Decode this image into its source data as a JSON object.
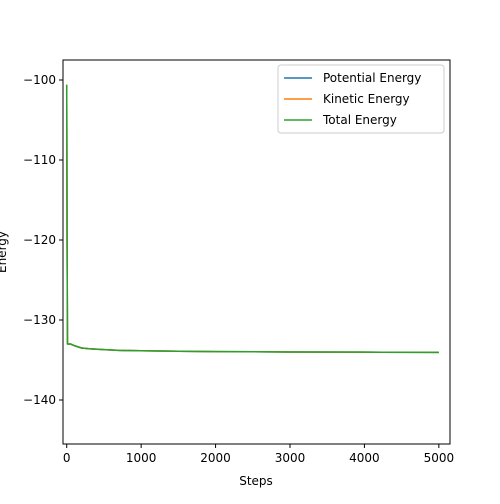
{
  "chart_data": {
    "type": "line",
    "xlabel": "Steps",
    "ylabel": "Energy",
    "xlim": [
      -50,
      5150
    ],
    "ylim": [
      -145.5,
      -97.5
    ],
    "xticks": [
      0,
      1000,
      2000,
      3000,
      4000,
      5000
    ],
    "yticks": [
      -100,
      -110,
      -120,
      -130,
      -140
    ],
    "xtick_labels": [
      "0",
      "1000",
      "2000",
      "3000",
      "4000",
      "5000"
    ],
    "ytick_labels": [
      "−100",
      "−110",
      "−120",
      "−130",
      "−140"
    ],
    "grid": false,
    "legend_position": "top-right",
    "series": [
      {
        "name": "Potential Energy",
        "color": "#1f77b4",
        "x": [
          0,
          5,
          10,
          20,
          30,
          50,
          100,
          200,
          300,
          500,
          700,
          1000,
          1500,
          2000,
          2500,
          3000,
          4000,
          5000
        ],
        "y": [
          -100.6,
          -120.0,
          -133.0,
          -133.0,
          -133.0,
          -133.0,
          -133.2,
          -133.5,
          -133.6,
          -133.7,
          -133.8,
          -133.85,
          -133.9,
          -133.95,
          -133.97,
          -134.0,
          -134.02,
          -134.05
        ]
      },
      {
        "name": "Kinetic Energy",
        "color": "#ff7f0e",
        "x": [
          0,
          5,
          10,
          20,
          30,
          50,
          100,
          200,
          300,
          500,
          700,
          1000,
          1500,
          2000,
          2500,
          3000,
          4000,
          5000
        ],
        "y": [
          -100.6,
          -120.0,
          -133.0,
          -133.0,
          -133.0,
          -133.0,
          -133.2,
          -133.5,
          -133.6,
          -133.7,
          -133.8,
          -133.85,
          -133.9,
          -133.95,
          -133.97,
          -134.0,
          -134.02,
          -134.05
        ]
      },
      {
        "name": "Total Energy",
        "color": "#2ca02c",
        "x": [
          0,
          5,
          10,
          20,
          30,
          50,
          100,
          200,
          300,
          500,
          700,
          1000,
          1500,
          2000,
          2500,
          3000,
          4000,
          5000
        ],
        "y": [
          -100.6,
          -120.0,
          -133.0,
          -133.0,
          -133.0,
          -133.0,
          -133.2,
          -133.5,
          -133.6,
          -133.7,
          -133.8,
          -133.85,
          -133.9,
          -133.95,
          -133.97,
          -134.0,
          -134.02,
          -134.05
        ]
      }
    ]
  }
}
